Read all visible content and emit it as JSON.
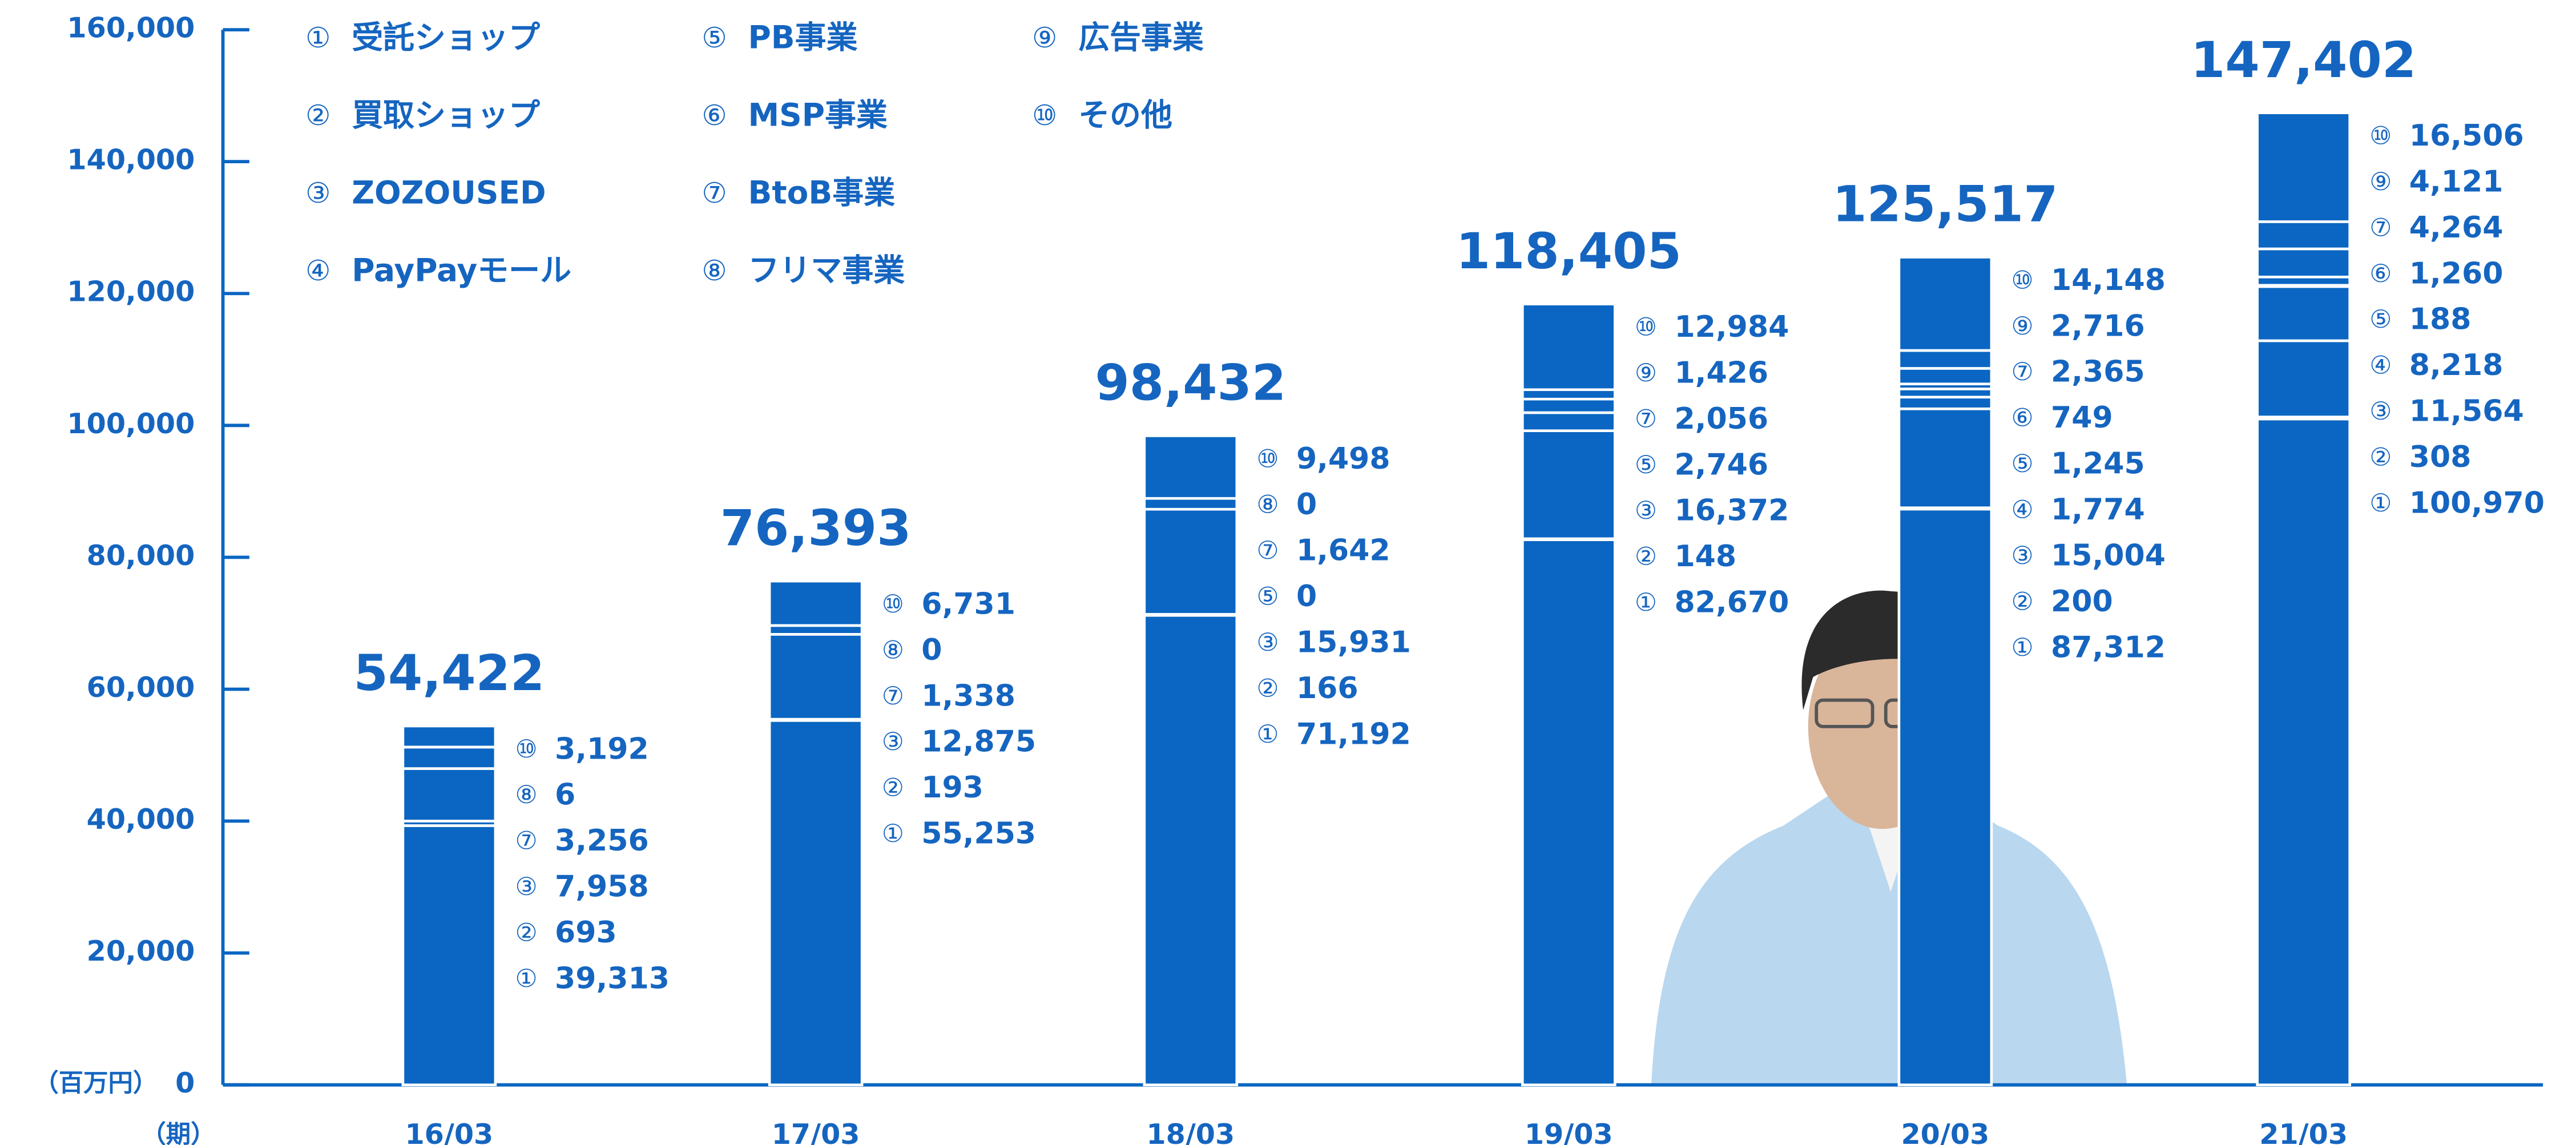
{
  "chart_data": {
    "type": "stacked_bar",
    "y_unit_label": "（百万円）",
    "x_unit_label": "（期）",
    "categories": [
      "16/03",
      "17/03",
      "18/03",
      "19/03",
      "20/03",
      "21/03"
    ],
    "totals": [
      54422,
      76393,
      98432,
      118405,
      125517,
      147402
    ],
    "total_labels": [
      "54,422",
      "76,393",
      "98,432",
      "118,405",
      "125,517",
      "147,402"
    ],
    "series": [
      {
        "marker": "①",
        "name": "受託ショップ",
        "color": "#0a66c2",
        "values": [
          39313,
          55253,
          71192,
          82670,
          87312,
          100970
        ],
        "value_labels": [
          "39,313",
          "55,253",
          "71,192",
          "82,670",
          "87,312",
          "100,970"
        ]
      },
      {
        "marker": "②",
        "name": "買取ショップ",
        "color": "#0a66c2",
        "values": [
          693,
          193,
          166,
          148,
          200,
          308
        ]
      },
      {
        "marker": "③",
        "name": "ZOZOUSED",
        "color": "#0a66c2",
        "values": [
          7958,
          12875,
          15931,
          16372,
          15004,
          11564
        ],
        "value_labels": [
          "7,958",
          "12,875",
          "15,931",
          "16,372",
          "15,004",
          "11,564"
        ]
      },
      {
        "marker": "④",
        "name": "PayPayモール",
        "color": "#0a66c2",
        "values": [
          null,
          null,
          null,
          null,
          1774,
          8218
        ],
        "value_labels": [
          null,
          null,
          null,
          null,
          "1,774",
          "8,218"
        ]
      },
      {
        "marker": "⑤",
        "name": "PB事業",
        "color": "#0a66c2",
        "values": [
          null,
          null,
          0,
          2746,
          1245,
          188
        ],
        "value_labels": [
          null,
          null,
          "0",
          "2,746",
          "1,245",
          "188"
        ]
      },
      {
        "marker": "⑥",
        "name": "MSP事業",
        "color": "#0a66c2",
        "values": [
          null,
          null,
          null,
          null,
          749,
          1260
        ],
        "value_labels": [
          null,
          null,
          null,
          null,
          "749",
          "1,260"
        ]
      },
      {
        "marker": "⑦",
        "name": "BtoB事業",
        "color": "#0a66c2",
        "values": [
          3256,
          1338,
          1642,
          2056,
          2365,
          4264
        ],
        "value_labels": [
          "3,256",
          "1,338",
          "1,642",
          "2,056",
          "2,365",
          "4,264"
        ]
      },
      {
        "marker": "⑧",
        "name": "フリマ事業",
        "color": "#0a66c2",
        "values": [
          6,
          0,
          0,
          null,
          null,
          null
        ]
      },
      {
        "marker": "⑨",
        "name": "広告事業",
        "color": "#0a66c2",
        "values": [
          null,
          null,
          null,
          1426,
          2716,
          4121
        ],
        "value_labels": [
          null,
          null,
          null,
          "1,426",
          "2,716",
          "4,121"
        ]
      },
      {
        "marker": "⑩",
        "name": "その他",
        "color": "#0a66c2",
        "values": [
          3192,
          6731,
          9498,
          12984,
          14148,
          16506
        ],
        "value_labels": [
          "3,192",
          "6,731",
          "9,498",
          "12,984",
          "14,148",
          "16,506"
        ]
      }
    ],
    "ylim": [
      0,
      160000
    ],
    "yticks": [
      0,
      {
        "value": 20000,
        "label": "20,000"
      },
      {
        "value": 40000,
        "label": "40,000"
      },
      {
        "value": 60000,
        "label": "60,000"
      },
      {
        "value": 80000,
        "label": "80,000"
      },
      {
        "value": 100000,
        "label": "100,000"
      },
      {
        "value": 120000,
        "label": "120,000"
      },
      {
        "value": 140000,
        "label": "140,000"
      },
      {
        "value": 160000,
        "label": "160,000"
      }
    ]
  }
}
